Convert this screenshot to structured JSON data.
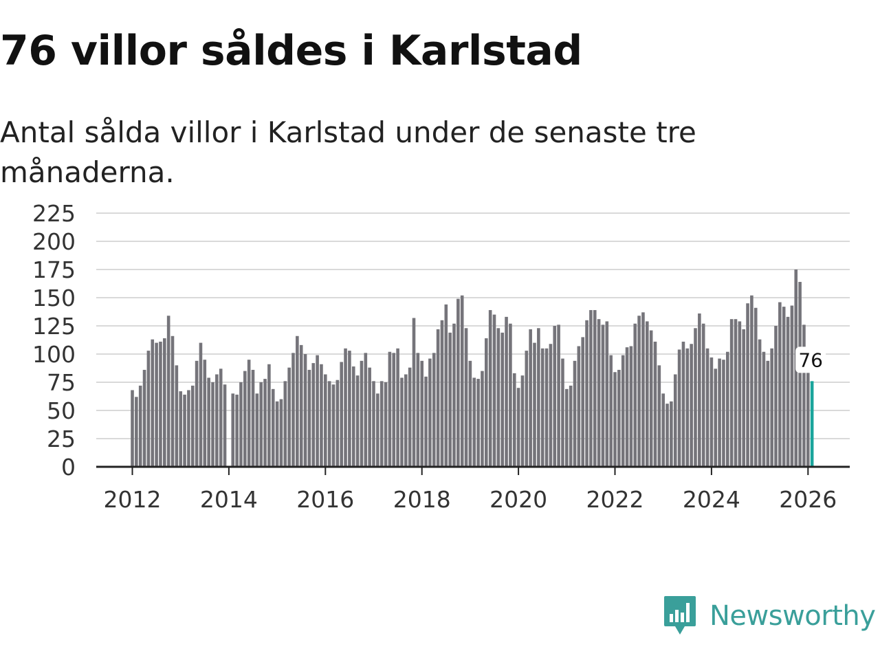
{
  "header": {
    "title": "76 villor såldes i Karlstad",
    "subtitle": "Antal sålda villor i Karlstad under de senaste tre månaderna."
  },
  "logo": {
    "text": "Newsworthy",
    "icon": "newsworthy-logo-icon"
  },
  "colors": {
    "bar": "#75747a",
    "highlight": "#1aa59c",
    "grid": "#d9d9d9",
    "axis": "#222222",
    "brand": "#3a9f9a"
  },
  "chart_data": {
    "type": "bar",
    "title": "Antal sålda villor i Karlstad under de senaste tre månaderna.",
    "xlabel": "",
    "ylabel": "",
    "ylim": [
      0,
      225
    ],
    "yticks": [
      0,
      25,
      50,
      75,
      100,
      125,
      150,
      175,
      200,
      225
    ],
    "xticks": [
      2012,
      2014,
      2016,
      2018,
      2020,
      2022,
      2024,
      2026
    ],
    "grid": true,
    "start": {
      "year": 2012,
      "month": 1
    },
    "highlight_label": "76",
    "values": [
      68,
      62,
      72,
      86,
      103,
      113,
      110,
      111,
      114,
      134,
      116,
      90,
      67,
      64,
      68,
      72,
      94,
      110,
      95,
      79,
      75,
      82,
      87,
      73,
      null,
      65,
      64,
      75,
      85,
      95,
      86,
      65,
      75,
      78,
      91,
      69,
      58,
      60,
      76,
      88,
      101,
      116,
      108,
      100,
      86,
      92,
      99,
      91,
      82,
      76,
      73,
      77,
      93,
      105,
      103,
      89,
      81,
      94,
      101,
      88,
      76,
      65,
      76,
      75,
      102,
      101,
      105,
      79,
      82,
      88,
      132,
      101,
      94,
      80,
      96,
      101,
      122,
      130,
      144,
      119,
      127,
      149,
      152,
      123,
      94,
      79,
      78,
      85,
      114,
      139,
      135,
      123,
      119,
      133,
      127,
      83,
      70,
      81,
      103,
      122,
      110,
      123,
      105,
      105,
      109,
      125,
      126,
      96,
      69,
      72,
      94,
      107,
      115,
      130,
      139,
      139,
      131,
      126,
      129,
      99,
      84,
      86,
      99,
      106,
      107,
      127,
      134,
      137,
      129,
      121,
      111,
      90,
      65,
      56,
      58,
      82,
      104,
      111,
      105,
      109,
      123,
      136,
      127,
      105,
      97,
      87,
      96,
      95,
      102,
      131,
      131,
      129,
      122,
      145,
      152,
      141,
      113,
      102,
      94,
      105,
      125,
      146,
      142,
      133,
      143,
      175,
      164,
      126,
      89,
      76
    ]
  }
}
